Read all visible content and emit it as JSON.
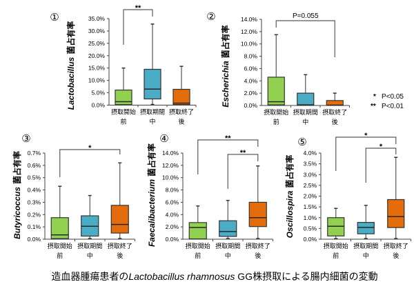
{
  "figure": {
    "category_keys": [
      "before",
      "during",
      "after"
    ],
    "category_colors": [
      "#92D050",
      "#4BACC6",
      "#E46C0A"
    ],
    "legend": [
      {
        "mark": "*",
        "text": "P<0.05"
      },
      {
        "mark": "**",
        "text": "P<0.01"
      }
    ],
    "caption": {
      "prefix": "造血器腫瘍患者の",
      "species": "Lactobacillus rhamnosus",
      "suffix": " GG株摂取による腸内細菌の変動"
    }
  },
  "chart_data": [
    {
      "type": "box",
      "panel": "①",
      "title": "",
      "ylabel_genus": "Lactobacillus",
      "ylabel_suffix": "菌占有率",
      "ylim": [
        0,
        35
      ],
      "yticks": [
        0,
        5,
        10,
        15,
        20,
        25,
        30,
        35
      ],
      "ytick_labels": [
        "0.0%",
        "5.0%",
        "10.0%",
        "15.0%",
        "20.0%",
        "25.0%",
        "30.0%",
        "35.0%"
      ],
      "categories": [
        {
          "line1": "摂取開始",
          "line2": "前"
        },
        {
          "line1": "摂取期間",
          "line2": "中"
        },
        {
          "line1": "摂取終了",
          "line2": "後"
        }
      ],
      "boxes": [
        {
          "min": 0,
          "q1": 0.2,
          "median": 1.4,
          "q3": 6.1,
          "max": 15.0
        },
        {
          "min": 0,
          "q1": 2.5,
          "median": 6.5,
          "q3": 14.5,
          "max": 32.8
        },
        {
          "min": 0,
          "q1": 0.2,
          "median": 0.8,
          "q3": 6.4,
          "max": 15.7
        }
      ],
      "comparisons": [
        {
          "from": 0,
          "to": 1,
          "label": "**"
        }
      ]
    },
    {
      "type": "box",
      "panel": "②",
      "title": "",
      "ylabel_genus": "Escherichia",
      "ylabel_suffix": "菌占有率",
      "ylim": [
        0,
        14
      ],
      "yticks": [
        0,
        2,
        4,
        6,
        8,
        10,
        12,
        14
      ],
      "ytick_labels": [
        "0.0%",
        "2.0%",
        "4.0%",
        "6.0%",
        "8.0%",
        "10.0%",
        "12.0%",
        "14.0%"
      ],
      "categories": [
        {
          "line1": "摂取開始",
          "line2": "前"
        },
        {
          "line1": "摂取期間",
          "line2": "中"
        },
        {
          "line1": "摂取終了",
          "line2": "後"
        }
      ],
      "boxes": [
        {
          "min": 0,
          "q1": 0.1,
          "median": 0.6,
          "q3": 4.6,
          "max": 11.5
        },
        {
          "min": 0,
          "q1": 0.05,
          "median": 0.1,
          "q3": 2.0,
          "max": 5.0
        },
        {
          "min": 0,
          "q1": 0.02,
          "median": 0.05,
          "q3": 0.8,
          "max": 2.0
        }
      ],
      "comparisons": [
        {
          "from": 0,
          "to": 2,
          "label": "P=0.055"
        }
      ]
    },
    {
      "type": "box",
      "panel": "③",
      "title": "",
      "ylabel_genus": "Butyricoccus",
      "ylabel_suffix": "菌占有率",
      "ylim": [
        0,
        0.7
      ],
      "yticks": [
        0,
        0.1,
        0.2,
        0.3,
        0.4,
        0.5,
        0.6,
        0.7
      ],
      "ytick_labels": [
        "0.0%",
        "0.1%",
        "0.2%",
        "0.3%",
        "0.4%",
        "0.5%",
        "0.6%",
        "0.7%"
      ],
      "categories": [
        {
          "line1": "摂取開始",
          "line2": "前"
        },
        {
          "line1": "摂取期間",
          "line2": "中"
        },
        {
          "line1": "摂取終了",
          "line2": "後"
        }
      ],
      "boxes": [
        {
          "min": 0,
          "q1": 0.005,
          "median": 0.035,
          "q3": 0.175,
          "max": 0.43
        },
        {
          "min": 0,
          "q1": 0.025,
          "median": 0.105,
          "q3": 0.19,
          "max": 0.355
        },
        {
          "min": 0,
          "q1": 0.05,
          "median": 0.12,
          "q3": 0.275,
          "max": 0.62
        }
      ],
      "comparisons": [
        {
          "from": 0,
          "to": 2,
          "label": "*"
        }
      ]
    },
    {
      "type": "box",
      "panel": "④",
      "title": "",
      "ylabel_genus": "Faecalibacterium",
      "ylabel_suffix": "菌占有率",
      "ylim": [
        0,
        14
      ],
      "yticks": [
        0,
        2,
        4,
        6,
        8,
        10,
        12,
        14
      ],
      "ytick_labels": [
        "0.0%",
        "2.0%",
        "4.0%",
        "6.0%",
        "8.0%",
        "10.0%",
        "12.0%",
        "14.0%"
      ],
      "categories": [
        {
          "line1": "摂取開始",
          "line2": "前"
        },
        {
          "line1": "摂取期間",
          "line2": "中"
        },
        {
          "line1": "摂取終了",
          "line2": "後"
        }
      ],
      "boxes": [
        {
          "min": 0,
          "q1": 0.05,
          "median": 1.9,
          "q3": 2.7,
          "max": 5.4
        },
        {
          "min": 0,
          "q1": 0.45,
          "median": 1.25,
          "q3": 3.0,
          "max": 6.3
        },
        {
          "min": 0,
          "q1": 2.05,
          "median": 3.5,
          "q3": 6.0,
          "max": 11.9
        }
      ],
      "comparisons": [
        {
          "from": 0,
          "to": 2,
          "label": "**"
        },
        {
          "from": 1,
          "to": 2,
          "label": "**"
        }
      ]
    },
    {
      "type": "box",
      "panel": "⑤",
      "title": "",
      "ylabel_genus": "Oscillospira",
      "ylabel_suffix": "菌占有率",
      "ylim": [
        0,
        4
      ],
      "yticks": [
        0,
        0.5,
        1,
        1.5,
        2,
        2.5,
        3,
        3.5,
        4
      ],
      "ytick_labels": [
        "0.0%",
        "0.5%",
        "1.0%",
        "1.5%",
        "2.0%",
        "2.5%",
        "3.0%",
        "3.5%",
        "4.0%"
      ],
      "categories": [
        {
          "line1": "摂取開始",
          "line2": "前"
        },
        {
          "line1": "摂取期間",
          "line2": "中"
        },
        {
          "line1": "摂取終了",
          "line2": "後"
        }
      ],
      "boxes": [
        {
          "min": 0,
          "q1": 0.15,
          "median": 0.6,
          "q3": 1.0,
          "max": 1.43
        },
        {
          "min": 0,
          "q1": 0.25,
          "median": 0.55,
          "q3": 0.78,
          "max": 1.57
        },
        {
          "min": 0,
          "q1": 0.54,
          "median": 1.05,
          "q3": 1.84,
          "max": 3.8
        }
      ],
      "comparisons": [
        {
          "from": 0,
          "to": 2,
          "label": "*"
        },
        {
          "from": 1,
          "to": 2,
          "label": "*"
        }
      ]
    }
  ]
}
